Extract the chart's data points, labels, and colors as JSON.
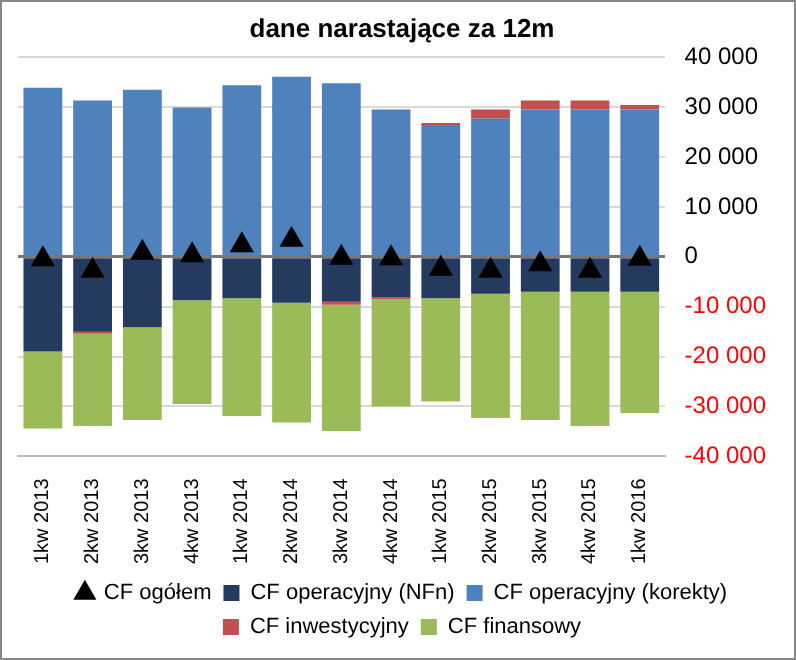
{
  "chart_data": {
    "type": "bar",
    "title": "dane narastające za 12m",
    "stacked": true,
    "categories": [
      "1kw 2013",
      "2kw 2013",
      "3kw 2013",
      "4kw 2013",
      "1kw 2014",
      "2kw 2014",
      "3kw 2014",
      "4kw 2014",
      "1kw 2015",
      "2kw 2015",
      "3kw 2015",
      "4kw 2015",
      "1kw 2016"
    ],
    "series": [
      {
        "name": "CF operacyjny (NFn)",
        "color": "#243a5e",
        "values": [
          -19000,
          -15000,
          -14100,
          -8700,
          -8300,
          -9200,
          -9000,
          -8100,
          -8300,
          -7400,
          -7000,
          -7000,
          -7000
        ]
      },
      {
        "name": "CF operacyjny (korekty)",
        "color": "#4f81bd",
        "values": [
          33900,
          31300,
          33500,
          29900,
          34400,
          36100,
          34800,
          29500,
          26400,
          27700,
          29500,
          29500,
          29500
        ]
      },
      {
        "name": "CF inwestycyjny",
        "color": "#c0504d",
        "values": [
          null,
          -400,
          null,
          null,
          null,
          null,
          -600,
          -400,
          400,
          1800,
          1800,
          1800,
          900
        ]
      },
      {
        "name": "CF finansowy",
        "color": "#9bbb59",
        "values": [
          -15400,
          -18500,
          -18600,
          -20800,
          -23600,
          -24000,
          -25300,
          -21500,
          -20700,
          -24900,
          -25700,
          -26900,
          -24300
        ]
      },
      {
        "name": "CF ogółem",
        "type": "scatter",
        "marker": "triangle",
        "color": "#000000",
        "x": [
          "1kw 2013",
          "2kw 2013",
          "3kw 2013",
          "4kw 2013",
          "1kw 2014",
          "2kw 2014",
          "3kw 2014",
          "4kw 2014",
          "1kw 2015",
          "2kw 2015",
          "3kw 2015",
          "4kw 2015",
          "1kw 2016"
        ],
        "values": [
          -500,
          -2800,
          800,
          300,
          2300,
          3400,
          -200,
          -300,
          -2400,
          -2800,
          -1500,
          -2800,
          -400
        ]
      }
    ],
    "ylim": [
      -40000,
      40000
    ],
    "yticks": [
      {
        "value": -40000,
        "label": "-40 000"
      },
      {
        "value": -30000,
        "label": "-30 000"
      },
      {
        "value": -20000,
        "label": "-20 000"
      },
      {
        "value": -10000,
        "label": "-10 000"
      },
      0,
      {
        "value": 10000,
        "label": "10 000"
      },
      {
        "value": 20000,
        "label": "20 000"
      },
      {
        "value": 30000,
        "label": "30 000"
      },
      {
        "value": 40000,
        "label": "40 000"
      }
    ],
    "grid": "y",
    "legend": "bottom"
  }
}
